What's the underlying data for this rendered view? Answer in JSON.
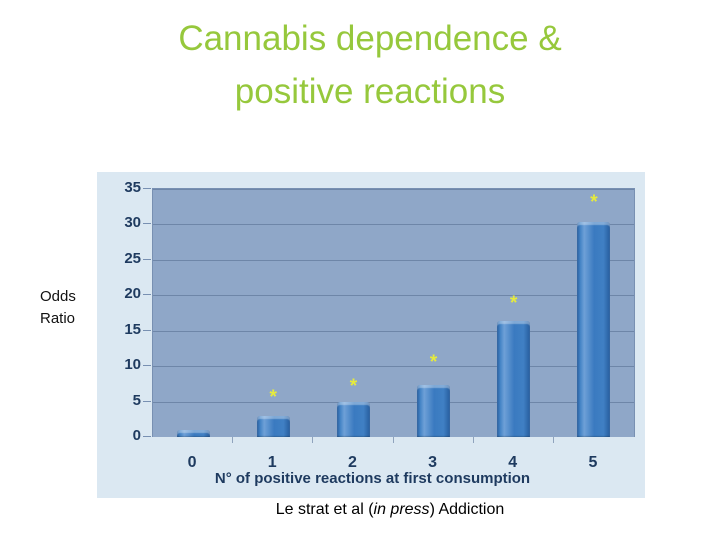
{
  "slide": {
    "title_line1": "Cannabis dependence &",
    "title_line2": "positive reactions",
    "citation": {
      "prefix": "Le strat et al (",
      "italic": "in press",
      "suffix": ") Addiction"
    }
  },
  "chart_data": {
    "type": "bar",
    "title": "",
    "categories": [
      "0",
      "1",
      "2",
      "3",
      "4",
      "5"
    ],
    "values": [
      1,
      3,
      5,
      7.3,
      16.4,
      30.3
    ],
    "significance_marker": "*",
    "significance": [
      false,
      true,
      true,
      true,
      true,
      true
    ],
    "marker_y_positions": [
      null,
      5.5,
      7.1,
      10.4,
      18.8,
      33
    ],
    "xlabel": "N° of positive reactions at first consumption",
    "ylabel": "Odds Ratio",
    "ylabel_line1": "Odds",
    "ylabel_line2": "Ratio",
    "yticks": [
      0,
      5,
      10,
      15,
      20,
      25,
      30,
      35
    ],
    "ylim": [
      0,
      35
    ],
    "grid": "horizontal",
    "legend": "none",
    "colors": {
      "title_text": "#96c83c",
      "panel_background": "#dbe8f2",
      "plot_background": "#8fa7c8",
      "gridline": "#6e86a8",
      "bar_fill": "#3a7ac0",
      "bar_edge": "#275d9e",
      "axis_text": "#1e3a5f",
      "asterisk": "#e6eb3c",
      "ylabel_text": "#111111",
      "citation_text": "#000000"
    }
  }
}
